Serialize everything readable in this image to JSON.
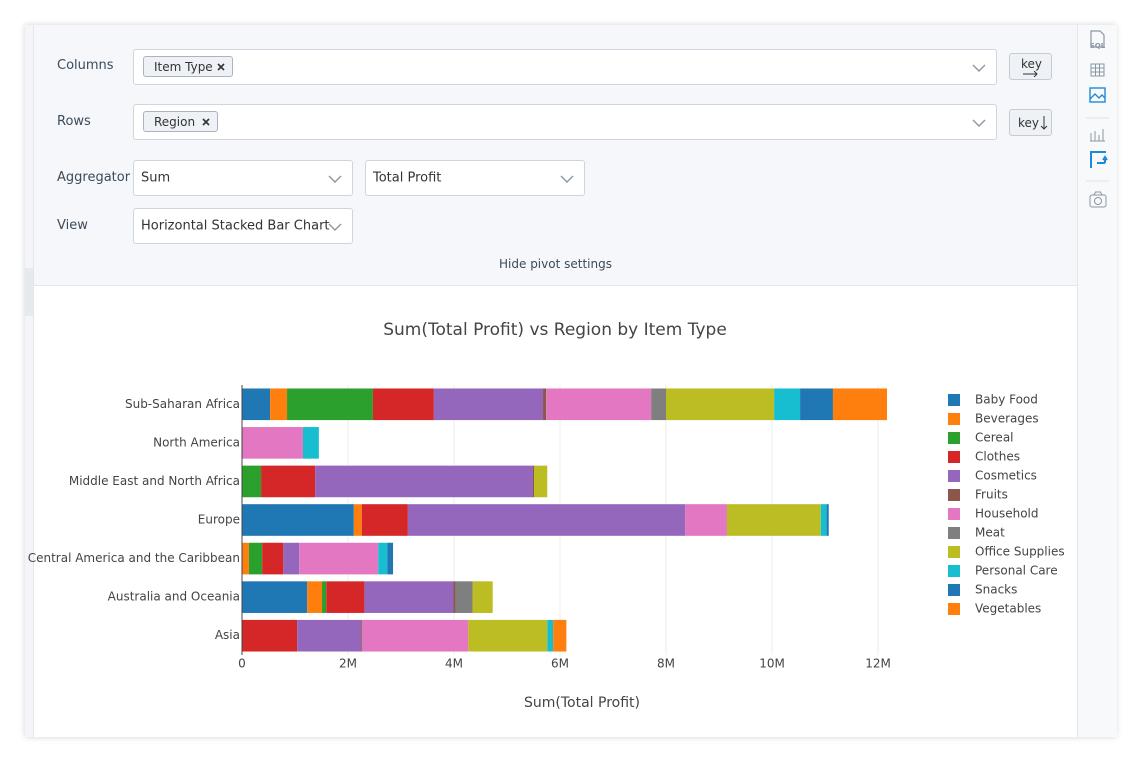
{
  "ui": {
    "columns_label": "Columns",
    "columns_chip": "Item Type",
    "columns_key": "key",
    "rows_label": "Rows",
    "rows_chip": "Region",
    "rows_key": "key",
    "aggregator_label": "Aggregator",
    "aggregator_value": "Sum",
    "aggregator_field": "Total Profit",
    "view_label": "View",
    "view_value": "Horizontal Stacked Bar Chart",
    "hide_settings": "Hide pivot settings",
    "sidebar_sql": "SQL"
  },
  "chart_data": {
    "type": "stacked-bar-horizontal",
    "title": "Sum(Total Profit) vs Region by Item Type",
    "x_label": "Sum(Total Profit)",
    "categories": [
      "Sub-Saharan Africa",
      "North America",
      "Middle East and North Africa",
      "Europe",
      "Central America and the Caribbean",
      "Australia and Oceania",
      "Asia"
    ],
    "series": [
      {
        "name": "Baby Food",
        "color": "#1f77b4",
        "values": [
          530000,
          0,
          0,
          2110000,
          0,
          1230000,
          0
        ]
      },
      {
        "name": "Beverages",
        "color": "#ff7f0e",
        "values": [
          320000,
          0,
          0,
          150000,
          130000,
          280000,
          0
        ]
      },
      {
        "name": "Cereal",
        "color": "#2ca02c",
        "values": [
          1620000,
          0,
          360000,
          0,
          250000,
          80000,
          0
        ]
      },
      {
        "name": "Clothes",
        "color": "#d62728",
        "values": [
          1150000,
          0,
          1020000,
          870000,
          400000,
          720000,
          1040000
        ]
      },
      {
        "name": "Cosmetics",
        "color": "#9467bd",
        "values": [
          2060000,
          0,
          4110000,
          5230000,
          300000,
          1680000,
          1210000
        ]
      },
      {
        "name": "Fruits",
        "color": "#8c564b",
        "values": [
          60000,
          0,
          20000,
          0,
          0,
          40000,
          20000
        ]
      },
      {
        "name": "Household",
        "color": "#e377c2",
        "values": [
          1980000,
          1150000,
          0,
          790000,
          1490000,
          0,
          2000000
        ]
      },
      {
        "name": "Meat",
        "color": "#7f7f7f",
        "values": [
          280000,
          0,
          0,
          0,
          0,
          320000,
          0
        ]
      },
      {
        "name": "Office Supplies",
        "color": "#bcbd22",
        "values": [
          2040000,
          0,
          250000,
          1770000,
          0,
          380000,
          1490000
        ]
      },
      {
        "name": "Personal Care",
        "color": "#17becf",
        "values": [
          490000,
          300000,
          0,
          110000,
          170000,
          0,
          110000
        ]
      },
      {
        "name": "Snacks",
        "color": "#1f77b4",
        "values": [
          620000,
          0,
          0,
          40000,
          110000,
          0,
          0
        ]
      },
      {
        "name": "Vegetables",
        "color": "#ff7f0e",
        "values": [
          1020000,
          0,
          0,
          0,
          0,
          0,
          250000
        ]
      }
    ],
    "xlim": [
      0,
      12800000
    ],
    "xticks": [
      0,
      {
        "value": 2000000,
        "label": "2M"
      },
      {
        "value": 4000000,
        "label": "4M"
      },
      {
        "value": 6000000,
        "label": "6M"
      },
      {
        "value": 8000000,
        "label": "8M"
      },
      {
        "value": 10000000,
        "label": "10M"
      },
      {
        "value": 12000000,
        "label": "12M"
      }
    ],
    "grid": true,
    "legend": "right"
  }
}
